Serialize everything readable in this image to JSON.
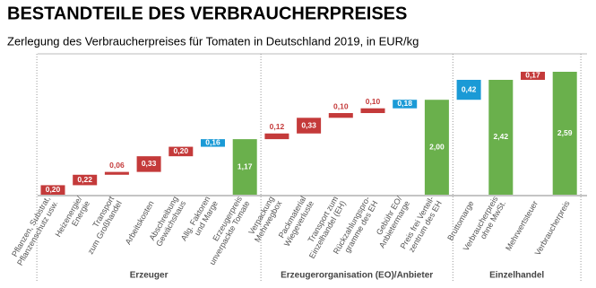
{
  "chart_data": {
    "type": "waterfall",
    "title": "BESTANDTEILE DES VERBRAUCHERPREISES",
    "subtitle": "Zerlegung des Verbraucherpreises für Tomaten in Deutschland 2019, in EUR/kg",
    "groups": [
      {
        "name": "Erzeuger",
        "categories": [
          "Pflanzen, Substrat,\nPflanzenschutz usw.",
          "Heizenergie/\nEnergie",
          "Transport\nzum Großhandel",
          "Arbeitskosten",
          "Abschreibung\nGewächshaus",
          "Allg. Faktoren\nund Marge",
          "Erzeugerpreis\nunverpackte Tomate"
        ],
        "values": [
          0.2,
          0.22,
          0.06,
          0.33,
          0.2,
          0.16,
          1.17
        ],
        "value_labels": [
          "0,20",
          "0,22",
          "0,06",
          "0,33",
          "0,20",
          "0,16",
          "1,17"
        ],
        "measures": [
          "relative",
          "relative",
          "relative",
          "relative",
          "relative",
          "relative",
          "total"
        ],
        "colors": [
          "#c43a3a",
          "#c43a3a",
          "#c43a3a",
          "#c43a3a",
          "#c43a3a",
          "#1a9ad6",
          "#6ab04c"
        ]
      },
      {
        "name": "Erzeugerorganisation (EO)/Anbieter",
        "categories": [
          "Verpackung\nMehrwegbox",
          "Packmaterial\nWiegeverluste",
          "Transport zum\nEinzelhandel (EH)",
          "Rückzahlungspro-\ngramme des EH",
          "Gebühr EO/\nAnbietermarge",
          "Preis frei Verteil-\nzentrum des EH"
        ],
        "values": [
          0.12,
          0.33,
          0.1,
          0.1,
          0.18,
          2.0
        ],
        "value_labels": [
          "0,12",
          "0,33",
          "0,10",
          "0,10",
          "0,18",
          "2,00"
        ],
        "measures": [
          "relative",
          "relative",
          "relative",
          "relative",
          "relative",
          "total"
        ],
        "colors": [
          "#c43a3a",
          "#c43a3a",
          "#c43a3a",
          "#c43a3a",
          "#1a9ad6",
          "#6ab04c"
        ]
      },
      {
        "name": "Einzelhandel",
        "categories": [
          "Bruttomarge",
          "Verbraucherpreis\nohne MwSt.",
          "Mehrwertsteuer",
          "Verbraucherpreis"
        ],
        "values": [
          0.42,
          2.42,
          0.17,
          2.59
        ],
        "value_labels": [
          "0,42",
          "2,42",
          "0,17",
          "2,59"
        ],
        "measures": [
          "relative",
          "total",
          "relative",
          "total"
        ],
        "colors": [
          "#1a9ad6",
          "#6ab04c",
          "#c43a3a",
          "#6ab04c"
        ]
      }
    ]
  }
}
